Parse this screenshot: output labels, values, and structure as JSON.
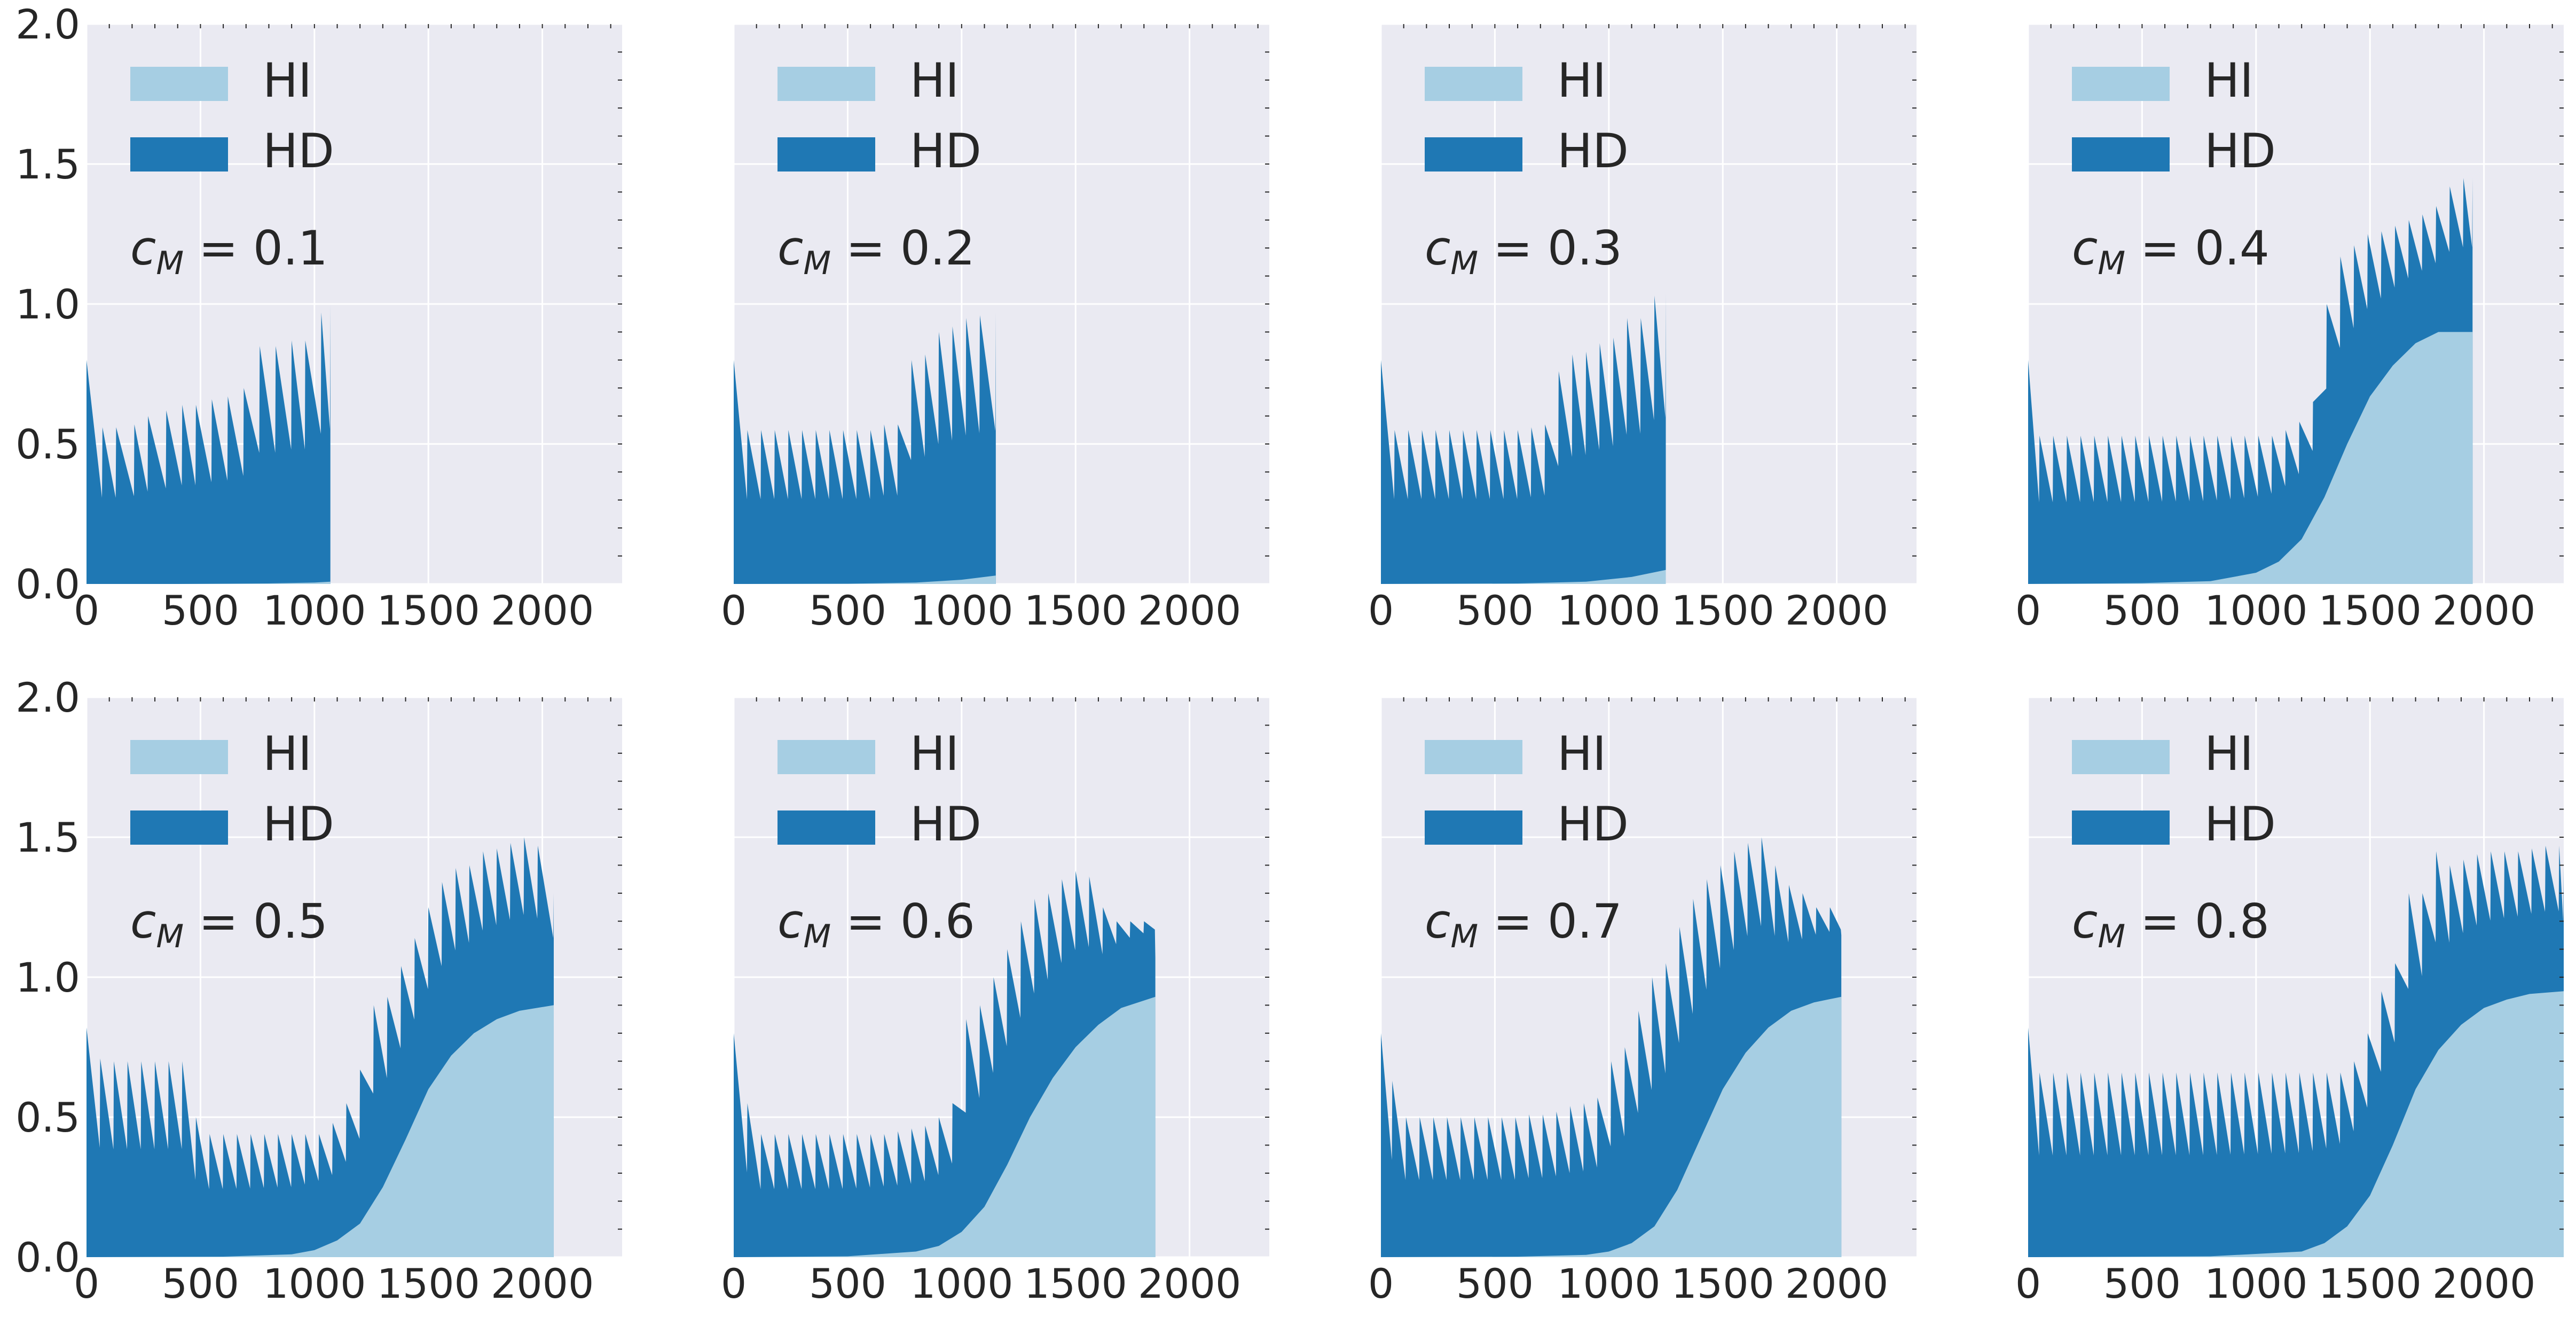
{
  "chart_data": [
    {
      "type": "area",
      "xlim": [
        0,
        2350
      ],
      "ylim": [
        0,
        2.0
      ],
      "xticks": [
        0,
        500,
        1000,
        1500,
        2000
      ],
      "yticks": [
        0.0,
        0.5,
        1.0,
        1.5,
        2.0
      ],
      "xtick_labels": [
        "0",
        "500",
        "1000",
        "1500",
        "2000"
      ],
      "ytick_labels": [
        "0.0",
        "0.5",
        "1.0",
        "1.5",
        "2.0"
      ],
      "grid": true,
      "stacked": true,
      "legend": "top-left",
      "annotation": "c_M = 0.1",
      "end_x": 1070,
      "hi": {
        "x": [
          0,
          400,
          800,
          1000,
          1070
        ],
        "y": [
          0,
          0,
          0.002,
          0.005,
          0.008
        ]
      },
      "hd_peaks": {
        "x": [
          0,
          70,
          130,
          210,
          270,
          350,
          420,
          480,
          550,
          620,
          690,
          760,
          830,
          900,
          960,
          1030,
          1070
        ],
        "y": [
          0.8,
          0.56,
          0.56,
          0.57,
          0.6,
          0.62,
          0.64,
          0.64,
          0.66,
          0.67,
          0.7,
          0.85,
          0.85,
          0.87,
          0.87,
          0.97,
          1.0
        ]
      },
      "series": [
        {
          "name": "HI",
          "color": "#a6cee3"
        },
        {
          "name": "HD",
          "color": "#1f78b4"
        }
      ]
    },
    {
      "type": "area",
      "xlim": [
        0,
        2350
      ],
      "ylim": [
        0,
        2.0
      ],
      "xticks": [
        0,
        500,
        1000,
        1500,
        2000
      ],
      "yticks": [
        0.0,
        0.5,
        1.0,
        1.5,
        2.0
      ],
      "xtick_labels": [
        "0",
        "500",
        "1000",
        "1500",
        "2000"
      ],
      "ytick_labels": [
        "",
        "",
        "",
        "",
        ""
      ],
      "grid": true,
      "stacked": true,
      "legend": "top-left",
      "annotation": "c_M = 0.2",
      "end_x": 1150,
      "hi": {
        "x": [
          0,
          500,
          800,
          1000,
          1150
        ],
        "y": [
          0,
          0.001,
          0.005,
          0.015,
          0.03
        ]
      },
      "hd_peaks": {
        "x": [
          0,
          60,
          120,
          180,
          240,
          300,
          360,
          420,
          480,
          540,
          600,
          660,
          720,
          780,
          840,
          900,
          960,
          1020,
          1080,
          1150
        ],
        "y": [
          0.8,
          0.55,
          0.55,
          0.55,
          0.55,
          0.55,
          0.55,
          0.55,
          0.55,
          0.55,
          0.55,
          0.57,
          0.57,
          0.8,
          0.82,
          0.9,
          0.92,
          0.95,
          0.96,
          0.97
        ]
      },
      "series": [
        {
          "name": "HI",
          "color": "#a6cee3"
        },
        {
          "name": "HD",
          "color": "#1f78b4"
        }
      ]
    },
    {
      "type": "area",
      "xlim": [
        0,
        2350
      ],
      "ylim": [
        0,
        2.0
      ],
      "xticks": [
        0,
        500,
        1000,
        1500,
        2000
      ],
      "yticks": [
        0.0,
        0.5,
        1.0,
        1.5,
        2.0
      ],
      "xtick_labels": [
        "0",
        "500",
        "1000",
        "1500",
        "2000"
      ],
      "ytick_labels": [
        "",
        "",
        "",
        "",
        ""
      ],
      "grid": true,
      "stacked": true,
      "legend": "top-left",
      "annotation": "c_M = 0.3",
      "end_x": 1250,
      "hi": {
        "x": [
          0,
          600,
          900,
          1100,
          1250
        ],
        "y": [
          0,
          0.002,
          0.008,
          0.025,
          0.05
        ]
      },
      "hd_peaks": {
        "x": [
          0,
          60,
          120,
          180,
          240,
          300,
          360,
          420,
          480,
          540,
          600,
          660,
          720,
          780,
          840,
          900,
          960,
          1020,
          1080,
          1140,
          1200,
          1250
        ],
        "y": [
          0.8,
          0.55,
          0.55,
          0.55,
          0.55,
          0.55,
          0.55,
          0.55,
          0.55,
          0.55,
          0.55,
          0.56,
          0.57,
          0.76,
          0.82,
          0.83,
          0.86,
          0.88,
          0.95,
          0.95,
          1.03,
          1.04
        ]
      },
      "series": [
        {
          "name": "HI",
          "color": "#a6cee3"
        },
        {
          "name": "HD",
          "color": "#1f78b4"
        }
      ]
    },
    {
      "type": "area",
      "xlim": [
        0,
        2350
      ],
      "ylim": [
        0,
        2.0
      ],
      "xticks": [
        0,
        500,
        1000,
        1500,
        2000
      ],
      "yticks": [
        0.0,
        0.5,
        1.0,
        1.5,
        2.0
      ],
      "xtick_labels": [
        "0",
        "500",
        "1000",
        "1500",
        "2000"
      ],
      "ytick_labels": [
        "",
        "",
        "",
        "",
        ""
      ],
      "grid": true,
      "stacked": true,
      "legend": "top-left",
      "annotation": "c_M = 0.4",
      "end_x": 1950,
      "hi": {
        "x": [
          0,
          500,
          800,
          1000,
          1100,
          1200,
          1300,
          1400,
          1500,
          1600,
          1700,
          1800,
          1950
        ],
        "y": [
          0,
          0.003,
          0.01,
          0.04,
          0.08,
          0.16,
          0.31,
          0.5,
          0.67,
          0.78,
          0.86,
          0.9,
          0.9
        ]
      },
      "hd_peaks": {
        "x": [
          0,
          50,
          110,
          170,
          230,
          290,
          350,
          410,
          470,
          530,
          590,
          650,
          710,
          770,
          830,
          890,
          950,
          1010,
          1070,
          1130,
          1190,
          1250,
          1310,
          1370,
          1430,
          1490,
          1550,
          1610,
          1670,
          1730,
          1790,
          1850,
          1910,
          1950
        ],
        "y": [
          0.8,
          0.53,
          0.53,
          0.53,
          0.53,
          0.53,
          0.53,
          0.53,
          0.53,
          0.53,
          0.53,
          0.53,
          0.53,
          0.53,
          0.53,
          0.53,
          0.53,
          0.53,
          0.53,
          0.55,
          0.58,
          0.65,
          1.0,
          1.17,
          1.21,
          1.25,
          1.26,
          1.28,
          1.3,
          1.32,
          1.35,
          1.42,
          1.45,
          1.45
        ]
      },
      "series": [
        {
          "name": "HI",
          "color": "#a6cee3"
        },
        {
          "name": "HD",
          "color": "#1f78b4"
        }
      ]
    },
    {
      "type": "area",
      "xlim": [
        0,
        2350
      ],
      "ylim": [
        0,
        2.0
      ],
      "xticks": [
        0,
        500,
        1000,
        1500,
        2000
      ],
      "yticks": [
        0.0,
        0.5,
        1.0,
        1.5,
        2.0
      ],
      "xtick_labels": [
        "0",
        "500",
        "1000",
        "1500",
        "2000"
      ],
      "ytick_labels": [
        "0.0",
        "0.5",
        "1.0",
        "1.5",
        "2.0"
      ],
      "grid": true,
      "stacked": true,
      "legend": "top-left",
      "annotation": "c_M = 0.5",
      "end_x": 2050,
      "hi": {
        "x": [
          0,
          600,
          900,
          1000,
          1100,
          1200,
          1300,
          1400,
          1500,
          1600,
          1700,
          1800,
          1900,
          2050
        ],
        "y": [
          0,
          0.002,
          0.01,
          0.025,
          0.06,
          0.12,
          0.25,
          0.42,
          0.6,
          0.72,
          0.8,
          0.85,
          0.88,
          0.9
        ]
      },
      "hd_peaks": {
        "x": [
          0,
          60,
          120,
          180,
          240,
          300,
          360,
          420,
          480,
          540,
          600,
          660,
          720,
          780,
          840,
          900,
          960,
          1020,
          1080,
          1140,
          1200,
          1260,
          1320,
          1380,
          1440,
          1500,
          1560,
          1620,
          1680,
          1740,
          1800,
          1860,
          1920,
          1980,
          2050
        ],
        "y": [
          0.82,
          0.71,
          0.7,
          0.7,
          0.7,
          0.7,
          0.7,
          0.7,
          0.5,
          0.44,
          0.44,
          0.44,
          0.44,
          0.44,
          0.44,
          0.44,
          0.44,
          0.44,
          0.48,
          0.55,
          0.67,
          0.9,
          0.93,
          1.04,
          1.14,
          1.25,
          1.34,
          1.39,
          1.4,
          1.45,
          1.46,
          1.48,
          1.5,
          1.47,
          1.3
        ]
      },
      "series": [
        {
          "name": "HI",
          "color": "#a6cee3"
        },
        {
          "name": "HD",
          "color": "#1f78b4"
        }
      ]
    },
    {
      "type": "area",
      "xlim": [
        0,
        2350
      ],
      "ylim": [
        0,
        2.0
      ],
      "xticks": [
        0,
        500,
        1000,
        1500,
        2000
      ],
      "yticks": [
        0.0,
        0.5,
        1.0,
        1.5,
        2.0
      ],
      "xtick_labels": [
        "0",
        "500",
        "1000",
        "1500",
        "2000"
      ],
      "ytick_labels": [
        "",
        "",
        "",
        "",
        ""
      ],
      "grid": true,
      "stacked": true,
      "legend": "top-left",
      "annotation": "c_M = 0.6",
      "end_x": 1850,
      "hi": {
        "x": [
          0,
          500,
          800,
          900,
          1000,
          1100,
          1200,
          1300,
          1400,
          1500,
          1600,
          1700,
          1850
        ],
        "y": [
          0,
          0.003,
          0.02,
          0.04,
          0.09,
          0.18,
          0.33,
          0.5,
          0.64,
          0.75,
          0.83,
          0.89,
          0.93
        ]
      },
      "hd_peaks": {
        "x": [
          0,
          60,
          120,
          180,
          240,
          300,
          360,
          420,
          480,
          540,
          600,
          660,
          720,
          780,
          840,
          900,
          960,
          1020,
          1080,
          1140,
          1200,
          1260,
          1320,
          1380,
          1440,
          1500,
          1560,
          1620,
          1680,
          1740,
          1800,
          1850
        ],
        "y": [
          0.8,
          0.55,
          0.44,
          0.44,
          0.44,
          0.44,
          0.44,
          0.44,
          0.44,
          0.44,
          0.44,
          0.44,
          0.45,
          0.46,
          0.47,
          0.5,
          0.55,
          0.85,
          0.9,
          1.0,
          1.1,
          1.2,
          1.28,
          1.3,
          1.35,
          1.38,
          1.36,
          1.25,
          1.2,
          1.2,
          1.2,
          1.07
        ]
      },
      "series": [
        {
          "name": "HI",
          "color": "#a6cee3"
        },
        {
          "name": "HD",
          "color": "#1f78b4"
        }
      ]
    },
    {
      "type": "area",
      "xlim": [
        0,
        2350
      ],
      "ylim": [
        0,
        2.0
      ],
      "xticks": [
        0,
        500,
        1000,
        1500,
        2000
      ],
      "yticks": [
        0.0,
        0.5,
        1.0,
        1.5,
        2.0
      ],
      "xtick_labels": [
        "0",
        "500",
        "1000",
        "1500",
        "2000"
      ],
      "ytick_labels": [
        "",
        "",
        "",
        "",
        ""
      ],
      "grid": true,
      "stacked": true,
      "legend": "top-left",
      "annotation": "c_M = 0.7",
      "end_x": 2020,
      "hi": {
        "x": [
          0,
          600,
          900,
          1000,
          1100,
          1200,
          1300,
          1400,
          1500,
          1600,
          1700,
          1800,
          1900,
          2020
        ],
        "y": [
          0,
          0.002,
          0.008,
          0.02,
          0.05,
          0.11,
          0.24,
          0.42,
          0.6,
          0.73,
          0.82,
          0.88,
          0.91,
          0.93
        ]
      },
      "hd_peaks": {
        "x": [
          0,
          50,
          110,
          170,
          230,
          290,
          350,
          410,
          470,
          530,
          590,
          650,
          710,
          770,
          830,
          890,
          950,
          1010,
          1070,
          1130,
          1190,
          1250,
          1310,
          1370,
          1430,
          1490,
          1550,
          1610,
          1670,
          1730,
          1790,
          1850,
          1910,
          1970,
          2020
        ],
        "y": [
          0.8,
          0.63,
          0.5,
          0.5,
          0.5,
          0.5,
          0.5,
          0.5,
          0.5,
          0.5,
          0.5,
          0.51,
          0.51,
          0.52,
          0.54,
          0.55,
          0.57,
          0.7,
          0.75,
          0.88,
          1.0,
          1.05,
          1.18,
          1.28,
          1.35,
          1.4,
          1.45,
          1.48,
          1.5,
          1.4,
          1.33,
          1.3,
          1.25,
          1.25,
          1.15
        ]
      },
      "series": [
        {
          "name": "HI",
          "color": "#a6cee3"
        },
        {
          "name": "HD",
          "color": "#1f78b4"
        }
      ]
    },
    {
      "type": "area",
      "xlim": [
        0,
        2350
      ],
      "ylim": [
        0,
        2.0
      ],
      "xticks": [
        0,
        500,
        1000,
        1500,
        2000
      ],
      "yticks": [
        0.0,
        0.5,
        1.0,
        1.5,
        2.0
      ],
      "xtick_labels": [
        "0",
        "500",
        "1000",
        "1500",
        "2000"
      ],
      "ytick_labels": [
        "",
        "",
        "",
        "",
        ""
      ],
      "grid": true,
      "stacked": true,
      "legend": "top-left",
      "annotation": "c_M = 0.8",
      "end_x": 2350,
      "hi": {
        "x": [
          0,
          800,
          1200,
          1300,
          1400,
          1500,
          1600,
          1700,
          1800,
          1900,
          2000,
          2100,
          2200,
          2350
        ],
        "y": [
          0,
          0.003,
          0.02,
          0.05,
          0.11,
          0.22,
          0.4,
          0.6,
          0.74,
          0.83,
          0.89,
          0.92,
          0.94,
          0.95
        ]
      },
      "hd_peaks": {
        "x": [
          0,
          50,
          110,
          170,
          230,
          290,
          350,
          410,
          470,
          530,
          590,
          650,
          710,
          770,
          830,
          890,
          950,
          1010,
          1070,
          1130,
          1190,
          1250,
          1310,
          1370,
          1430,
          1490,
          1550,
          1610,
          1670,
          1730,
          1790,
          1850,
          1910,
          1970,
          2030,
          2090,
          2150,
          2210,
          2270,
          2330,
          2350
        ],
        "y": [
          0.82,
          0.66,
          0.66,
          0.66,
          0.66,
          0.66,
          0.66,
          0.66,
          0.66,
          0.66,
          0.66,
          0.66,
          0.66,
          0.66,
          0.66,
          0.66,
          0.66,
          0.66,
          0.66,
          0.66,
          0.66,
          0.66,
          0.66,
          0.66,
          0.7,
          0.8,
          0.95,
          1.05,
          1.3,
          1.3,
          1.45,
          1.4,
          1.42,
          1.44,
          1.45,
          1.45,
          1.45,
          1.46,
          1.47,
          1.47,
          1.4
        ]
      },
      "series": [
        {
          "name": "HI",
          "color": "#a6cee3"
        },
        {
          "name": "HD",
          "color": "#1f78b4"
        }
      ]
    }
  ]
}
